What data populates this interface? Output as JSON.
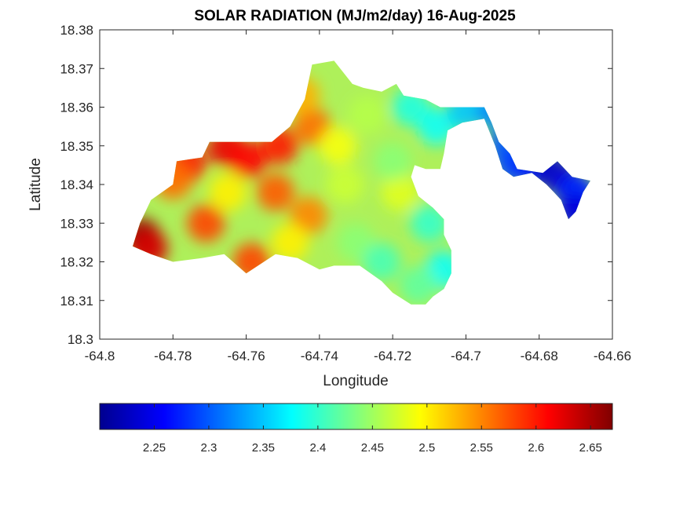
{
  "chart_data": {
    "type": "heatmap",
    "title": "SOLAR RADIATION (MJ/m2/day) 16-Aug-2025",
    "xlabel": "Longitude",
    "ylabel": "Latitude",
    "xlim": [
      -64.8,
      -64.66
    ],
    "ylim": [
      18.3,
      18.38
    ],
    "xticks": [
      -64.8,
      -64.78,
      -64.76,
      -64.74,
      -64.72,
      -64.7,
      -64.68,
      -64.66
    ],
    "xtick_labels": [
      "-64.8",
      "-64.78",
      "-64.76",
      "-64.74",
      "-64.72",
      "-64.7",
      "-64.68",
      "-64.66"
    ],
    "yticks": [
      18.3,
      18.31,
      18.32,
      18.33,
      18.34,
      18.35,
      18.36,
      18.37,
      18.38
    ],
    "ytick_labels": [
      "18.3",
      "18.31",
      "18.32",
      "18.33",
      "18.34",
      "18.35",
      "18.36",
      "18.37",
      "18.38"
    ],
    "grid": false,
    "colormap": "jet",
    "colorbar": {
      "orientation": "horizontal",
      "placement": "bottom",
      "clim": [
        2.2,
        2.67
      ],
      "ticks": [
        2.25,
        2.3,
        2.35,
        2.4,
        2.45,
        2.5,
        2.55,
        2.6,
        2.65
      ],
      "tick_labels": [
        "2.25",
        "2.3",
        "2.35",
        "2.4",
        "2.45",
        "2.5",
        "2.55",
        "2.6",
        "2.65"
      ]
    },
    "hotspots": [
      {
        "lon": -64.7885,
        "lat": 18.3265,
        "value": 2.66
      },
      {
        "lon": -64.7865,
        "lat": 18.3235,
        "value": 2.63
      },
      {
        "lon": -64.7655,
        "lat": 18.3495,
        "value": 2.62
      },
      {
        "lon": -64.7595,
        "lat": 18.3465,
        "value": 2.61
      },
      {
        "lon": -64.751,
        "lat": 18.35,
        "value": 2.6
      },
      {
        "lon": -64.776,
        "lat": 18.3455,
        "value": 2.6
      },
      {
        "lon": -64.78,
        "lat": 18.341,
        "value": 2.56
      },
      {
        "lon": -64.752,
        "lat": 18.338,
        "value": 2.57
      },
      {
        "lon": -64.771,
        "lat": 18.33,
        "value": 2.58
      },
      {
        "lon": -64.7585,
        "lat": 18.32,
        "value": 2.58
      },
      {
        "lon": -64.742,
        "lat": 18.355,
        "value": 2.56
      },
      {
        "lon": -64.743,
        "lat": 18.332,
        "value": 2.55
      },
      {
        "lon": -64.745,
        "lat": 18.363,
        "value": 2.53
      },
      {
        "lon": -64.765,
        "lat": 18.338,
        "value": 2.5
      },
      {
        "lon": -64.748,
        "lat": 18.325,
        "value": 2.5
      },
      {
        "lon": -64.735,
        "lat": 18.35,
        "value": 2.49
      },
      {
        "lon": -64.733,
        "lat": 18.34,
        "value": 2.47
      },
      {
        "lon": -64.727,
        "lat": 18.358,
        "value": 2.46
      },
      {
        "lon": -64.718,
        "lat": 18.338,
        "value": 2.48
      },
      {
        "lon": -64.73,
        "lat": 18.325,
        "value": 2.44
      },
      {
        "lon": -64.72,
        "lat": 18.346,
        "value": 2.44
      },
      {
        "lon": -64.723,
        "lat": 18.32,
        "value": 2.41
      },
      {
        "lon": -64.71,
        "lat": 18.33,
        "value": 2.4
      },
      {
        "lon": -64.715,
        "lat": 18.36,
        "value": 2.39
      },
      {
        "lon": -64.708,
        "lat": 18.355,
        "value": 2.38
      },
      {
        "lon": -64.706,
        "lat": 18.318,
        "value": 2.38
      },
      {
        "lon": -64.713,
        "lat": 18.314,
        "value": 2.42
      },
      {
        "lon": -64.7,
        "lat": 18.359,
        "value": 2.35
      },
      {
        "lon": -64.692,
        "lat": 18.359,
        "value": 2.32
      },
      {
        "lon": -64.689,
        "lat": 18.35,
        "value": 2.3
      },
      {
        "lon": -64.687,
        "lat": 18.345,
        "value": 2.29
      },
      {
        "lon": -64.682,
        "lat": 18.345,
        "value": 2.27
      },
      {
        "lon": -64.676,
        "lat": 18.343,
        "value": 2.23
      },
      {
        "lon": -64.671,
        "lat": 18.339,
        "value": 2.25
      },
      {
        "lon": -64.669,
        "lat": 18.337,
        "value": 2.28
      },
      {
        "lon": -64.67,
        "lat": 18.333,
        "value": 2.24
      }
    ],
    "land_region_outline": [
      [
        -64.791,
        18.324
      ],
      [
        -64.789,
        18.33
      ],
      [
        -64.786,
        18.336
      ],
      [
        -64.78,
        18.34
      ],
      [
        -64.779,
        18.346
      ],
      [
        -64.772,
        18.347
      ],
      [
        -64.77,
        18.351
      ],
      [
        -64.753,
        18.351
      ],
      [
        -64.748,
        18.355
      ],
      [
        -64.744,
        18.362
      ],
      [
        -64.742,
        18.371
      ],
      [
        -64.736,
        18.372
      ],
      [
        -64.731,
        18.366
      ],
      [
        -64.728,
        18.365
      ],
      [
        -64.723,
        18.364
      ],
      [
        -64.719,
        18.366
      ],
      [
        -64.717,
        18.363
      ],
      [
        -64.711,
        18.362
      ],
      [
        -64.707,
        18.36
      ],
      [
        -64.703,
        18.36
      ],
      [
        -64.699,
        18.36
      ],
      [
        -64.695,
        18.36
      ],
      [
        -64.693,
        18.356
      ],
      [
        -64.691,
        18.351
      ],
      [
        -64.688,
        18.348
      ],
      [
        -64.686,
        18.344
      ],
      [
        -64.679,
        18.343
      ],
      [
        -64.675,
        18.346
      ],
      [
        -64.671,
        18.342
      ],
      [
        -64.666,
        18.341
      ],
      [
        -64.668,
        18.338
      ],
      [
        -64.67,
        18.333
      ],
      [
        -64.672,
        18.331
      ],
      [
        -64.674,
        18.336
      ],
      [
        -64.676,
        18.338
      ],
      [
        -64.678,
        18.34
      ],
      [
        -64.682,
        18.343
      ],
      [
        -64.687,
        18.342
      ],
      [
        -64.69,
        18.344
      ],
      [
        -64.692,
        18.35
      ],
      [
        -64.695,
        18.357
      ],
      [
        -64.701,
        18.356
      ],
      [
        -64.705,
        18.354
      ],
      [
        -64.706,
        18.348
      ],
      [
        -64.707,
        18.344
      ],
      [
        -64.711,
        18.344
      ],
      [
        -64.714,
        18.345
      ],
      [
        -64.715,
        18.342
      ],
      [
        -64.713,
        18.337
      ],
      [
        -64.709,
        18.334
      ],
      [
        -64.706,
        18.331
      ],
      [
        -64.706,
        18.327
      ],
      [
        -64.704,
        18.323
      ],
      [
        -64.704,
        18.317
      ],
      [
        -64.706,
        18.313
      ],
      [
        -64.709,
        18.311
      ],
      [
        -64.711,
        18.309
      ],
      [
        -64.715,
        18.309
      ],
      [
        -64.72,
        18.312
      ],
      [
        -64.723,
        18.315
      ],
      [
        -64.729,
        18.319
      ],
      [
        -64.736,
        18.319
      ],
      [
        -64.74,
        18.318
      ],
      [
        -64.746,
        18.321
      ],
      [
        -64.752,
        18.322
      ],
      [
        -64.76,
        18.317
      ],
      [
        -64.766,
        18.322
      ],
      [
        -64.772,
        18.321
      ],
      [
        -64.78,
        18.32
      ],
      [
        -64.786,
        18.322
      ],
      [
        -64.791,
        18.324
      ]
    ]
  }
}
